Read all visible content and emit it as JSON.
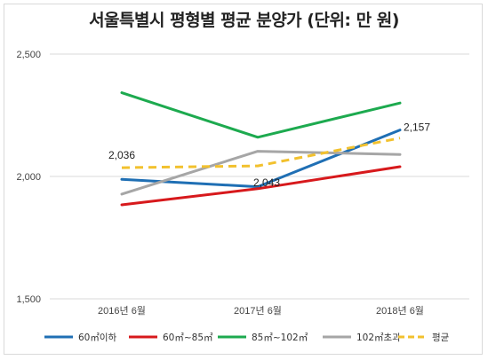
{
  "chart_data": {
    "type": "line",
    "title": "서울특별시 평형별 평균 분양가 (단위: 만 원)",
    "xlabel": "",
    "ylabel": "",
    "categories": [
      "2016년 6월",
      "2017년 6월",
      "2018년 6월"
    ],
    "ylim": [
      1500,
      2500
    ],
    "yticks": [
      "1,500",
      "2,000",
      "2,500"
    ],
    "grid": "horizontal",
    "legend": "bottom",
    "series": [
      {
        "name": "60㎡이하",
        "values": [
          1988,
          1958,
          2190
        ],
        "color": "#1f6fb4",
        "style": "solid"
      },
      {
        "name": "60㎡~85㎡",
        "values": [
          1884,
          1950,
          2040
        ],
        "color": "#d7191c",
        "style": "solid"
      },
      {
        "name": "85㎡~102㎡",
        "values": [
          2342,
          2160,
          2300
        ],
        "color": "#1daa4f",
        "style": "solid"
      },
      {
        "name": "102㎡초과",
        "values": [
          1928,
          2103,
          2090
        ],
        "color": "#a6a6a6",
        "style": "solid"
      },
      {
        "name": "평균",
        "values": [
          2036,
          2043,
          2157
        ],
        "color": "#f2c12e",
        "style": "dashed"
      }
    ],
    "annotations": [
      {
        "series": "평균",
        "index": 0,
        "text": "2,036"
      },
      {
        "series": "평균",
        "index": 1,
        "text": "2,043"
      },
      {
        "series": "평균",
        "index": 2,
        "text": "2,157"
      }
    ]
  }
}
